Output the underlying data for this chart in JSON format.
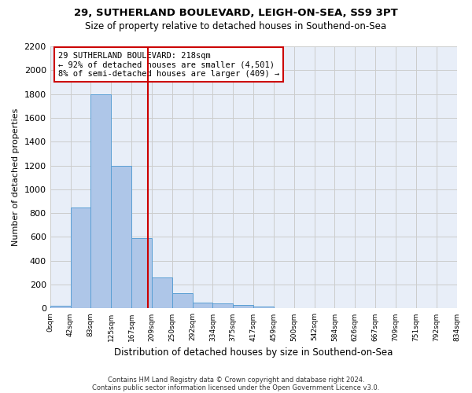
{
  "title_line1": "29, SUTHERLAND BOULEVARD, LEIGH-ON-SEA, SS9 3PT",
  "title_line2": "Size of property relative to detached houses in Southend-on-Sea",
  "xlabel": "Distribution of detached houses by size in Southend-on-Sea",
  "ylabel": "Number of detached properties",
  "footer_line1": "Contains HM Land Registry data © Crown copyright and database right 2024.",
  "footer_line2": "Contains public sector information licensed under the Open Government Licence v3.0.",
  "bar_values": [
    25,
    850,
    1800,
    1200,
    590,
    260,
    125,
    50,
    45,
    30,
    18,
    0,
    0,
    0,
    0,
    0,
    0,
    0,
    0,
    0
  ],
  "bin_labels": [
    "0sqm",
    "42sqm",
    "83sqm",
    "125sqm",
    "167sqm",
    "209sqm",
    "250sqm",
    "292sqm",
    "334sqm",
    "375sqm",
    "417sqm",
    "459sqm",
    "500sqm",
    "542sqm",
    "584sqm",
    "626sqm",
    "667sqm",
    "709sqm",
    "751sqm",
    "792sqm",
    "834sqm"
  ],
  "bar_color": "#aec6e8",
  "bar_edge_color": "#5a9fd4",
  "grid_color": "#cccccc",
  "background_color": "#e8eef8",
  "vline_x": 4.82,
  "vline_color": "#cc0000",
  "annotation_text": "29 SUTHERLAND BOULEVARD: 218sqm\n← 92% of detached houses are smaller (4,501)\n8% of semi-detached houses are larger (409) →",
  "annotation_box_color": "#ffffff",
  "annotation_box_edge": "#cc0000",
  "ylim": [
    0,
    2200
  ],
  "yticks": [
    0,
    200,
    400,
    600,
    800,
    1000,
    1200,
    1400,
    1600,
    1800,
    2000,
    2200
  ]
}
